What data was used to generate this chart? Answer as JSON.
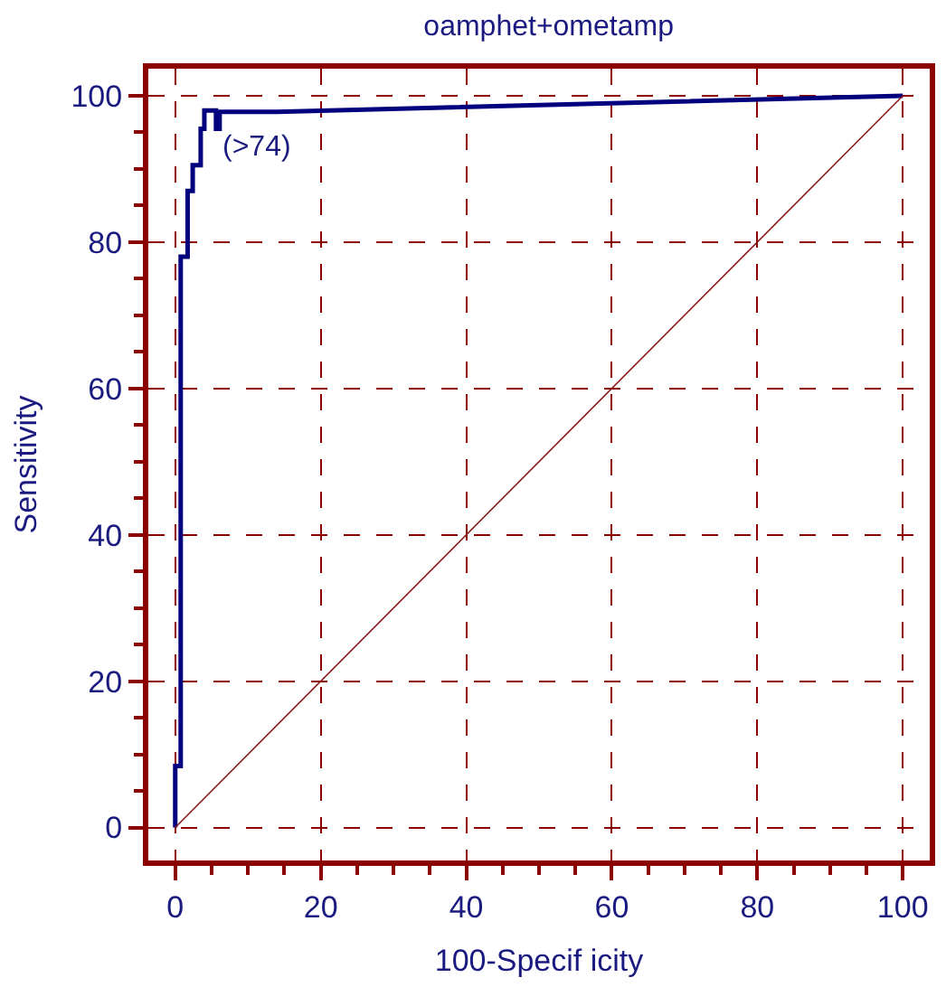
{
  "chart_data": {
    "type": "line",
    "title": "oamphet+ometamp",
    "xlabel": "100-Specif icity",
    "ylabel": "Sensitivity",
    "series": [
      {
        "color": "#00007f",
        "x": [
          0,
          0,
          0.75,
          0.75,
          1.7,
          1.7,
          2.4,
          2.4,
          3.5,
          3.5,
          4,
          4,
          5.6,
          5.6,
          6.1,
          6.1,
          14,
          100
        ],
        "values": [
          0,
          8.4,
          8.4,
          78,
          78,
          87,
          87,
          90.5,
          90.5,
          95.5,
          95.5,
          98,
          98,
          95.5,
          95.5,
          97.8,
          97.8,
          100
        ]
      },
      {
        "color": "#8b1a1a",
        "x": [
          0,
          100
        ],
        "values": [
          0,
          100
        ]
      }
    ],
    "xlim": [
      -3.7,
      103.7
    ],
    "ylim": [
      -4.5,
      103.7
    ],
    "xticks": [
      0,
      20,
      40,
      60,
      80,
      100
    ],
    "yticks": [
      0,
      20,
      40,
      60,
      80,
      100
    ],
    "grid": true,
    "line_style": "solid",
    "marker": "none",
    "annotations": [
      {
        "text": "(>74)",
        "x": 4,
        "y": 98
      }
    ]
  }
}
